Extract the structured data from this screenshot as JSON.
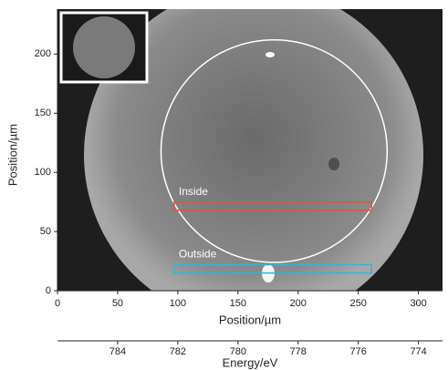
{
  "chart_data": {
    "type": "image",
    "xlabel": "Position/µm",
    "ylabel": "Position/µm",
    "xlim": [
      0,
      320
    ],
    "ylim": [
      0,
      238
    ],
    "xticks": [
      0,
      50,
      100,
      150,
      200,
      250,
      300
    ],
    "yticks": [
      0,
      50,
      100,
      150,
      200
    ],
    "x2label": "Energy/eV",
    "x2lim": [
      786,
      773.2
    ],
    "x2ticks": [
      784,
      782,
      780,
      778,
      776,
      774
    ],
    "circle": {
      "cx": 180,
      "cy": 118,
      "r": 94,
      "color": "#ffffff"
    },
    "regions": [
      {
        "label": "Inside",
        "x": [
          97,
          261
        ],
        "y": [
          68,
          75
        ],
        "color": "#e8503f"
      },
      {
        "label": "Outside",
        "x": [
          97,
          261
        ],
        "y": [
          15,
          22
        ],
        "color": "#2fb6d6"
      }
    ]
  }
}
